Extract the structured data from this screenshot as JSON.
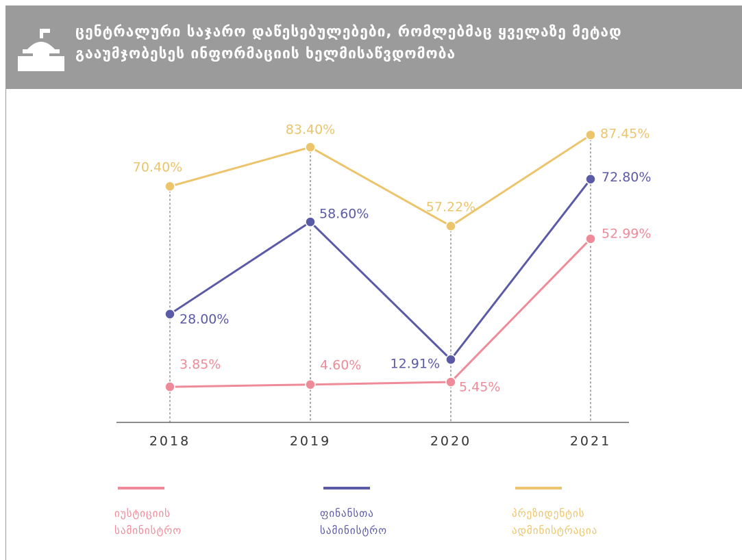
{
  "chart_data": {
    "type": "line",
    "title": "ცენტრალური საჯარო დაწესებულებები, რომლებმაც ყველაზე მეტად გააუმჯობესეს ინფორმაციის ხელმისაწვდომობა",
    "categories": [
      "2018",
      "2019",
      "2020",
      "2021"
    ],
    "series": [
      {
        "name": "იუსტიციის სამინისტრო",
        "color": "#ef8b98",
        "values": [
          3.85,
          4.6,
          5.45,
          52.99
        ],
        "value_labels": [
          "3.85%",
          "4.60%",
          "5.45%",
          "52.99%"
        ]
      },
      {
        "name": "ფინანსთა სამინისტრო",
        "color": "#5b5aa6",
        "values": [
          28.0,
          58.6,
          12.91,
          72.8
        ],
        "value_labels": [
          "28.00%",
          "58.60%",
          "12.91%",
          "72.80%"
        ]
      },
      {
        "name": "პრეზიდენტის ადმინისტრაცია",
        "color": "#ebc46c",
        "values": [
          70.4,
          83.4,
          57.22,
          87.45
        ],
        "value_labels": [
          "70.40%",
          "83.40%",
          "57.22%",
          "87.45%"
        ]
      }
    ]
  }
}
